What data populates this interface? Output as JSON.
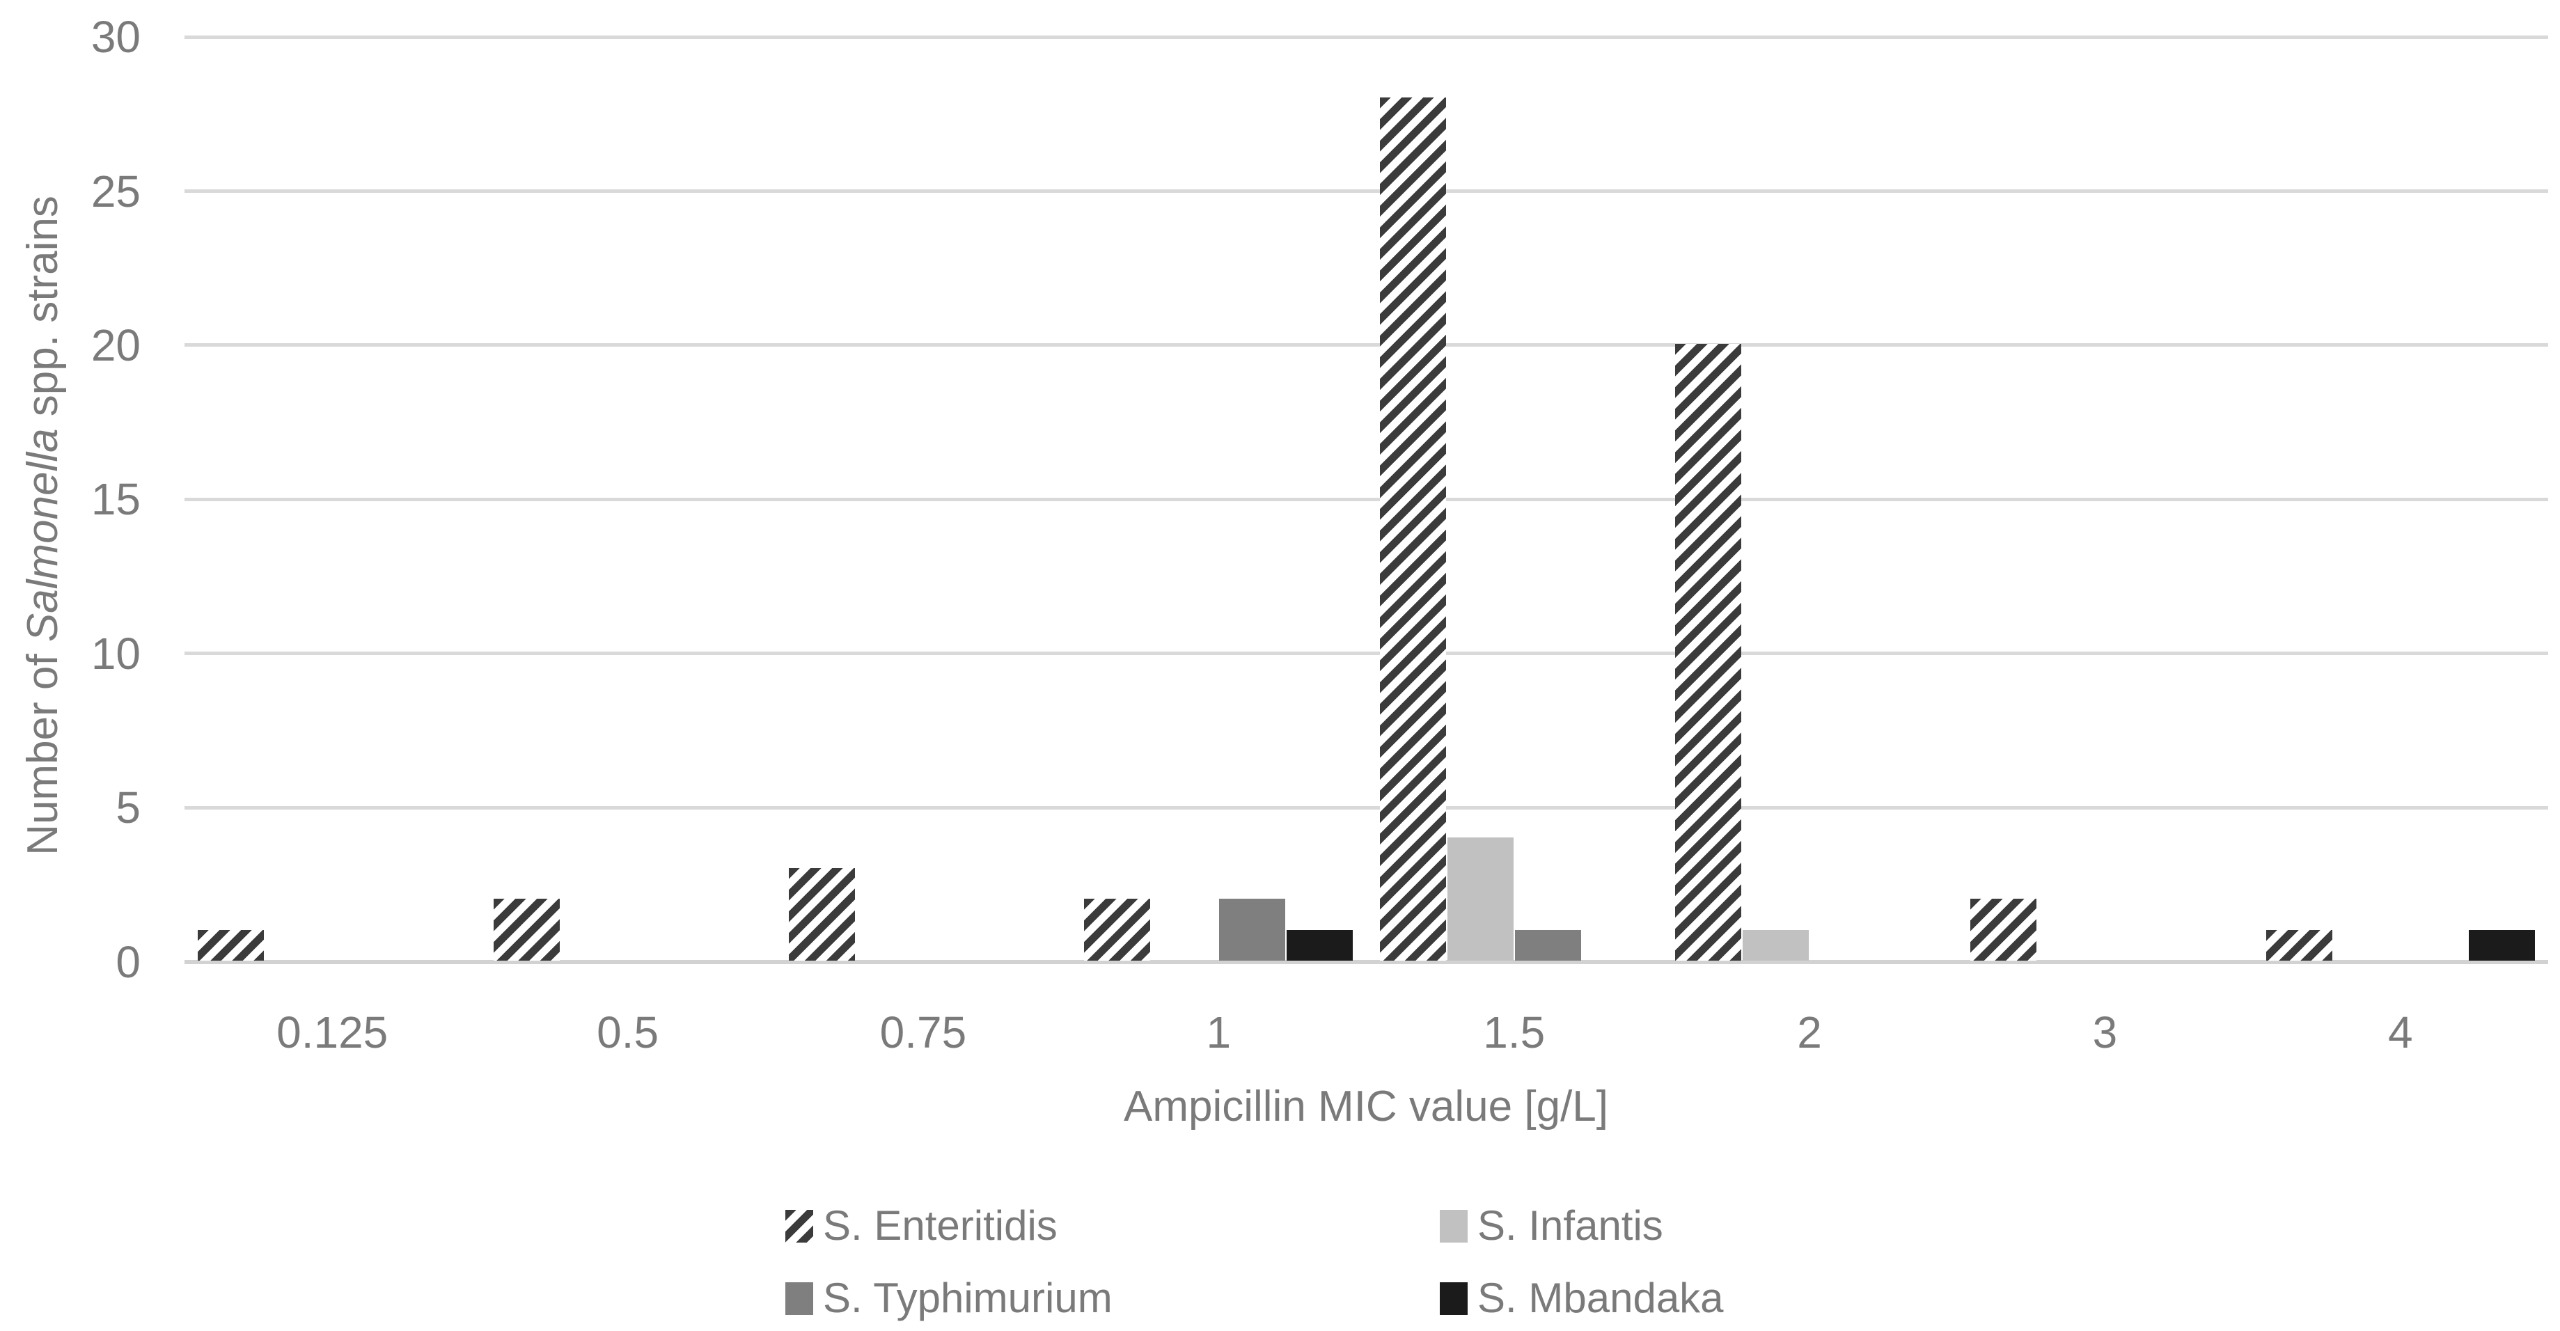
{
  "chart_data": {
    "type": "bar",
    "title": "",
    "xlabel": "Ampicillin MIC value [g/L]",
    "ylabel": "Number of Salmonella spp. strains",
    "ylabel_parts": [
      "Number of ",
      "Salmonella",
      " spp. strains"
    ],
    "categories": [
      "0.125",
      "0.5",
      "0.75",
      "1",
      "1.5",
      "2",
      "3",
      "4"
    ],
    "yticks": [
      0,
      5,
      10,
      15,
      20,
      25,
      30
    ],
    "ylim": [
      0,
      30
    ],
    "grid": "horizontal",
    "legend_position": "bottom-two-columns",
    "series": [
      {
        "name": "S. Enteritidis",
        "key": "enteritidis",
        "fill": {
          "type": "hatch",
          "color": "#3b3b3b"
        },
        "values": [
          1,
          2,
          3,
          2,
          28,
          20,
          2,
          1
        ]
      },
      {
        "name": "S. Infantis",
        "key": "infantis",
        "fill": {
          "type": "solid",
          "color": "#c1c1c1"
        },
        "values": [
          0,
          0,
          0,
          0,
          4,
          1,
          0,
          0
        ]
      },
      {
        "name": "S. Typhimurium",
        "key": "typhimurium",
        "fill": {
          "type": "solid",
          "color": "#7f7f7f"
        },
        "values": [
          0,
          0,
          0,
          2,
          1,
          0,
          0,
          0
        ]
      },
      {
        "name": "S. Mbandaka",
        "key": "mbandaka",
        "fill": {
          "type": "solid",
          "color": "#1b1b1b"
        },
        "values": [
          0,
          0,
          0,
          1,
          0,
          0,
          0,
          1
        ]
      }
    ],
    "style": {
      "text_color": "#7a7a7a",
      "grid_color": "#d9d9d9",
      "axis_line_color": "#d2d2d2",
      "background": "#ffffff"
    }
  }
}
